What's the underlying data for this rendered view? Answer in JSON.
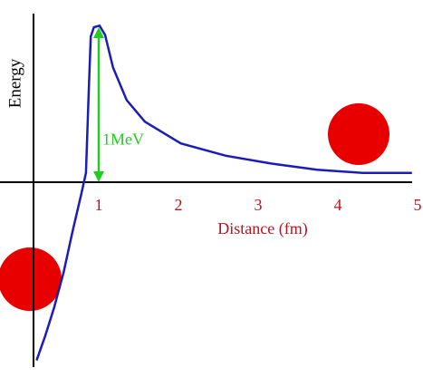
{
  "chart_data": {
    "type": "line",
    "ylabel": "Energy",
    "xlabel": "Distance (fm)",
    "x": [
      0.22,
      0.33,
      0.44,
      0.56,
      0.67,
      0.78,
      0.84,
      0.875,
      0.9,
      0.94,
      1.01,
      1.08,
      1.18,
      1.35,
      1.58,
      2.03,
      2.6,
      3.17,
      3.74,
      4.31,
      4.93
    ],
    "values": [
      -1.15,
      -0.99,
      -0.81,
      -0.58,
      -0.32,
      -0.08,
      0.06,
      0.59,
      0.94,
      1.0,
      1.01,
      0.95,
      0.74,
      0.53,
      0.39,
      0.25,
      0.17,
      0.12,
      0.08,
      0.06,
      0.06
    ],
    "color": "#1c1cb8",
    "xlim": [
      0.2,
      5
    ],
    "ylim": [
      -1.2,
      1.1
    ],
    "xticks": [
      1,
      2,
      3,
      4,
      5
    ],
    "annotation": {
      "text": "1MeV",
      "x": 1,
      "from": 0,
      "to": 1,
      "color": "#22cc22"
    },
    "label_color": "#c0101a"
  }
}
